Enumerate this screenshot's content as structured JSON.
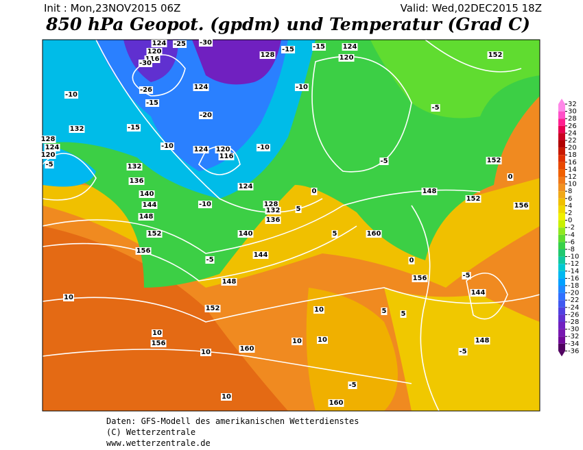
{
  "header": {
    "init": "Init : Mon,23NOV2015 06Z",
    "valid": "Valid: Wed,02DEC2015 18Z",
    "title": "850 hPa Geopot. (gpdm) und Temperatur (Grad C)"
  },
  "legend": {
    "ticks": [
      32,
      30,
      28,
      26,
      24,
      22,
      20,
      18,
      16,
      14,
      12,
      10,
      8,
      6,
      4,
      2,
      0,
      -2,
      -4,
      -6,
      -8,
      -10,
      -12,
      -14,
      -16,
      -18,
      -20,
      -22,
      -24,
      -26,
      -28,
      -30,
      -32,
      -34,
      -36
    ],
    "colors": [
      "#ff88e8",
      "#ff50c8",
      "#ff2090",
      "#e80050",
      "#c80020",
      "#b00000",
      "#c81800",
      "#e03000",
      "#e84800",
      "#f06000",
      "#f07818",
      "#f09020",
      "#f0a818",
      "#f0c000",
      "#f0d800",
      "#f0f000",
      "#c8f000",
      "#90e820",
      "#60dc30",
      "#38d048",
      "#20c870",
      "#10c8a0",
      "#00c8d0",
      "#00b8f0",
      "#00a0ff",
      "#2088ff",
      "#3070ff",
      "#4058f0",
      "#5040e0",
      "#6030d0",
      "#7020c0",
      "#7818b0",
      "#700898",
      "#500060"
    ]
  },
  "map": {
    "labels": [
      "124",
      "120",
      "116",
      "-30",
      "-25",
      "-30",
      "128",
      "-15",
      "-15",
      "124",
      "120",
      "152",
      "-10",
      "-26",
      "-15",
      "124",
      "132",
      "128",
      "124",
      "120",
      "-5",
      "-15",
      "-10",
      "124",
      "120",
      "116",
      "-20",
      "-10",
      "132",
      "136",
      "140",
      "144",
      "148",
      "152",
      "156",
      "-10",
      "-5",
      "124",
      "128",
      "132",
      "136",
      "140",
      "144",
      "148",
      "152",
      "156",
      "160",
      "-5",
      "0",
      "5",
      "10",
      "10",
      "10",
      "10",
      "10",
      "156",
      "160",
      "152",
      "148",
      "144",
      "-5",
      "0",
      "5",
      "10",
      "-5",
      "-10",
      "148",
      "152",
      "156",
      "5",
      "5",
      "0",
      "-5",
      "160",
      "-5",
      "10"
    ]
  },
  "footer": {
    "lines": [
      "Daten: GFS-Modell des amerikanischen Wetterdienstes",
      "(C) Wetterzentrale",
      "www.wetterzentrale.de"
    ]
  }
}
